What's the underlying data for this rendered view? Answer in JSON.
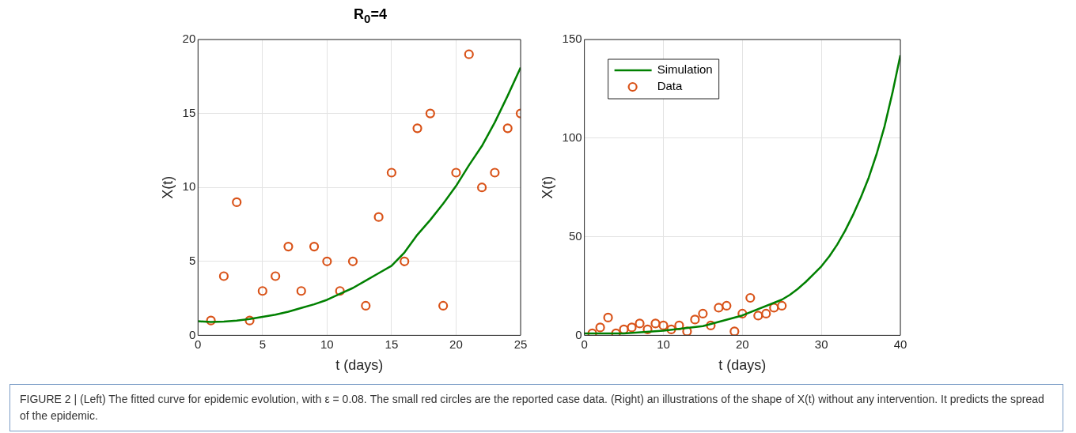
{
  "chart_data": [
    {
      "type": "scatter",
      "title": "R$_{0}$=4",
      "xlabel": "t (days)",
      "ylabel": "X(t)",
      "xlim": [
        0,
        25
      ],
      "xticks": [
        0,
        5,
        10,
        15,
        20,
        25
      ],
      "ylim": [
        0,
        20
      ],
      "yticks": [
        0,
        5,
        10,
        15,
        20
      ],
      "grid": true,
      "annotations": [
        "FIGURE 2 | (Left) The fitted curve for epidemic evolution, with ε = 0.08. The small red circles are the reported case data. (Right) an illustrations of the shape of X(t) without any intervention. It predicts the spread of the epidemic."
      ],
      "series": [
        {
          "type": "line",
          "marker": "none",
          "color": "#008000",
          "x": [
            0,
            1,
            2,
            3,
            4,
            5,
            6,
            7,
            8,
            9,
            10,
            11,
            12,
            13,
            14,
            15,
            16,
            17,
            18,
            19,
            20,
            21,
            22,
            23,
            24,
            25
          ],
          "values": [
            0.95,
            0.9,
            0.93,
            1.0,
            1.1,
            1.25,
            1.4,
            1.6,
            1.85,
            2.1,
            2.4,
            2.8,
            3.2,
            3.7,
            4.2,
            4.7,
            5.6,
            6.8,
            7.8,
            8.9,
            10.1,
            11.5,
            12.8,
            14.4,
            16.2,
            18.1
          ]
        },
        {
          "marker": "circle",
          "color": "#d95319",
          "x": [
            1,
            2,
            3,
            4,
            5,
            6,
            7,
            8,
            9,
            10,
            11,
            12,
            13,
            14,
            15,
            16,
            17,
            18,
            19,
            20,
            21,
            22,
            23,
            24,
            25
          ],
          "values": [
            1,
            4,
            9,
            1,
            3,
            4,
            6,
            3,
            6,
            5,
            3,
            5,
            2,
            8,
            11,
            5,
            14,
            15,
            2,
            11,
            19,
            10,
            11,
            14,
            15
          ]
        }
      ]
    },
    {
      "type": "scatter",
      "xlabel": "t (days)",
      "ylabel": "X(t)",
      "xlim": [
        0,
        40
      ],
      "xticks": [
        0,
        10,
        20,
        30,
        40
      ],
      "ylim": [
        0,
        150
      ],
      "yticks": [
        0,
        50,
        100,
        150
      ],
      "grid": true,
      "legend": "top left",
      "series": [
        {
          "type": "line",
          "marker": "none",
          "name": "Simulation",
          "color": "#008000",
          "x": [
            0,
            5,
            10,
            15,
            20,
            25,
            26,
            27,
            28,
            29,
            30,
            31,
            32,
            33,
            34,
            35,
            36,
            37,
            38,
            39,
            40
          ],
          "values": [
            1,
            1,
            2.4,
            4.7,
            10.1,
            18.1,
            20.5,
            23.5,
            27,
            31,
            35,
            40,
            46,
            53,
            61,
            70,
            80,
            92,
            106,
            123,
            142
          ]
        },
        {
          "marker": "circle",
          "name": "Data",
          "color": "#d95319",
          "x": [
            1,
            2,
            3,
            4,
            5,
            6,
            7,
            8,
            9,
            10,
            11,
            12,
            13,
            14,
            15,
            16,
            17,
            18,
            19,
            20,
            21,
            22,
            23,
            24,
            25
          ],
          "values": [
            1,
            4,
            9,
            1,
            3,
            4,
            6,
            3,
            6,
            5,
            3,
            5,
            2,
            8,
            11,
            5,
            14,
            15,
            2,
            11,
            19,
            10,
            11,
            14,
            15
          ]
        }
      ]
    }
  ]
}
